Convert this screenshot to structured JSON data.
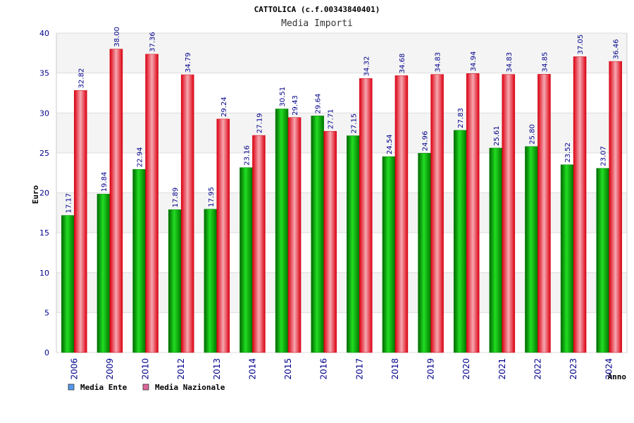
{
  "chart_data": {
    "type": "bar",
    "title": "CATTOLICA (c.f.00343840401)",
    "subtitle": "Media Importi",
    "xlabel": "Anno",
    "ylabel": "Euro",
    "ylim": [
      0,
      40
    ],
    "yticks": [
      0,
      5,
      10,
      15,
      20,
      25,
      30,
      35,
      40
    ],
    "grid": true,
    "legend_position": "bottom-left",
    "categories": [
      "2006",
      "2009",
      "2010",
      "2012",
      "2013",
      "2014",
      "2015",
      "2016",
      "2017",
      "2018",
      "2019",
      "2020",
      "2021",
      "2022",
      "2023",
      "2024"
    ],
    "series": [
      {
        "name": "Media Ente",
        "color": "#00aa00",
        "legend_color": "#5599ee",
        "values": [
          17.17,
          19.84,
          22.94,
          17.89,
          17.95,
          23.16,
          30.51,
          29.64,
          27.15,
          24.54,
          24.96,
          27.83,
          25.61,
          25.8,
          23.52,
          23.07
        ],
        "labels": [
          "17.17",
          "19.84",
          "22.94",
          "17.89",
          "17.95",
          "23.16",
          "30.51",
          "29.64",
          "27.15",
          "24.54",
          "24.96",
          "27.83",
          "25.61",
          "25.80",
          "23.52",
          "23.07"
        ]
      },
      {
        "name": "Media Nazionale",
        "color": "#ee1122",
        "legend_color": "#dd6699",
        "values": [
          32.82,
          38.0,
          37.36,
          34.79,
          29.24,
          27.19,
          29.43,
          27.71,
          34.32,
          34.68,
          34.83,
          34.94,
          34.83,
          34.85,
          37.05,
          36.46
        ],
        "labels": [
          "32.82",
          "38.00",
          "37.36",
          "34.79",
          "29.24",
          "27.19",
          "29.43",
          "27.71",
          "34.32",
          "34.68",
          "34.83",
          "34.94",
          "34.83",
          "34.85",
          "37.05",
          "36.46"
        ]
      }
    ]
  }
}
